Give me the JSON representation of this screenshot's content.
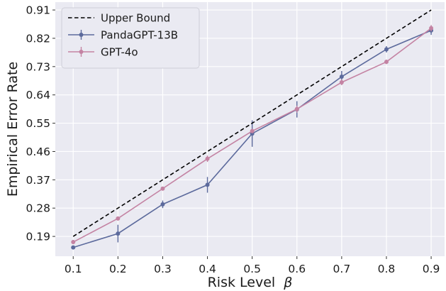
{
  "chart_data": {
    "type": "line",
    "title": "",
    "xlabel": "Risk Level",
    "xlabel_symbol": "β",
    "ylabel": "Empirical Error Rate",
    "x": [
      0.1,
      0.2,
      0.3,
      0.4,
      0.5,
      0.6,
      0.7,
      0.8,
      0.9
    ],
    "x_tick_labels": [
      "0.1",
      "0.2",
      "0.3",
      "0.4",
      "0.5",
      "0.6",
      "0.7",
      "0.8",
      "0.9"
    ],
    "y_ticks": [
      0.19,
      0.28,
      0.37,
      0.46,
      0.55,
      0.64,
      0.73,
      0.82,
      0.91
    ],
    "y_tick_labels": [
      "0.19",
      "0.28",
      "0.37",
      "0.46",
      "0.55",
      "0.64",
      "0.73",
      "0.82",
      "0.91"
    ],
    "xlim": [
      0.06,
      0.93
    ],
    "ylim": [
      0.127,
      0.935
    ],
    "grid": true,
    "legend_position": "top-left",
    "background_color": "#eaeaf2",
    "series": [
      {
        "name": "Upper Bound",
        "style": "dashed",
        "color": "#000000",
        "x": [
          0.1,
          0.9
        ],
        "values": [
          0.19,
          0.91
        ]
      },
      {
        "name": "PandaGPT-13B",
        "style": "solid-marker-errorbar",
        "color": "#5c6a9c",
        "values": [
          0.155,
          0.199,
          0.292,
          0.354,
          0.517,
          0.594,
          0.698,
          0.785,
          0.845
        ],
        "errors": [
          0.004,
          0.028,
          0.012,
          0.025,
          0.042,
          0.026,
          0.018,
          0.01,
          0.014
        ]
      },
      {
        "name": "GPT-4o",
        "style": "solid-marker-errorbar",
        "color": "#c483a3",
        "values": [
          0.172,
          0.247,
          0.342,
          0.437,
          0.525,
          0.595,
          0.68,
          0.745,
          0.852
        ],
        "errors": [
          0.007,
          0.006,
          0.006,
          0.01,
          0.007,
          0.011,
          0.009,
          0.007,
          0.01
        ]
      }
    ]
  }
}
